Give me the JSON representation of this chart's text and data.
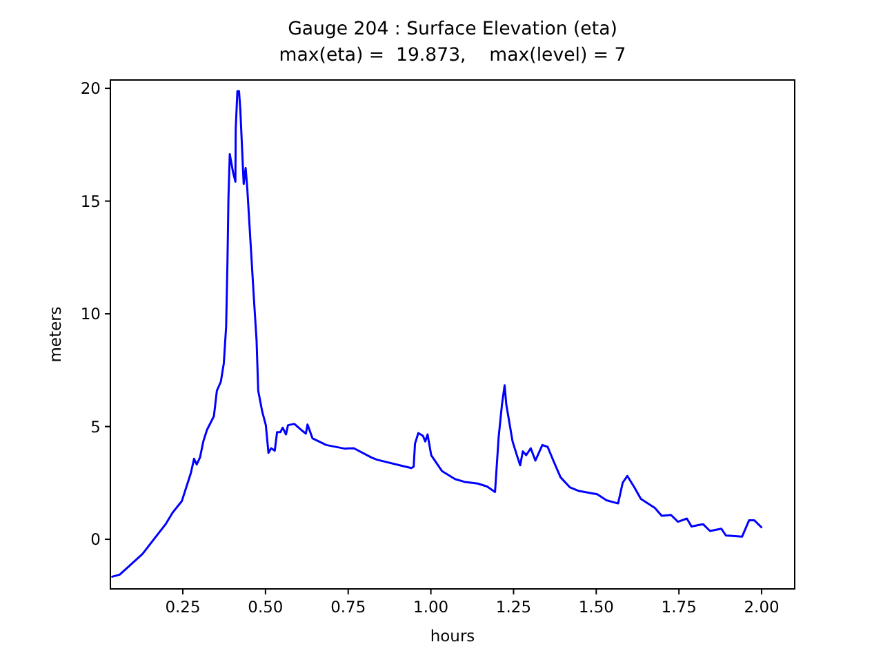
{
  "chart_data": {
    "type": "line",
    "title": "Gauge 204 : Surface Elevation (eta)",
    "subtitle": "max(eta) =  19.873,    max(level) = 7",
    "xlabel": "hours",
    "ylabel": "meters",
    "xlim": [
      0.031,
      2.1
    ],
    "ylim": [
      -2.2,
      20.37
    ],
    "xticks": [
      {
        "value": 0.25,
        "label": "0.25"
      },
      {
        "value": 0.5,
        "label": "0.50"
      },
      {
        "value": 0.75,
        "label": "0.75"
      },
      {
        "value": 1,
        "label": "1.00"
      },
      {
        "value": 1.25,
        "label": "1.25"
      },
      {
        "value": 1.5,
        "label": "1.50"
      },
      {
        "value": 1.75,
        "label": "1.75"
      },
      {
        "value": 2,
        "label": "2.00"
      }
    ],
    "yticks": [
      0,
      5,
      10,
      15,
      20
    ],
    "grid": false,
    "marker": "none",
    "line_style": "solid",
    "series": [
      {
        "color": "#0000ff",
        "x": [
          0.034,
          0.059,
          0.128,
          0.198,
          0.219,
          0.247,
          0.274,
          0.284,
          0.292,
          0.302,
          0.312,
          0.323,
          0.344,
          0.353,
          0.365,
          0.374,
          0.381,
          0.385,
          0.388,
          0.392,
          0.402,
          0.409,
          0.41,
          0.415,
          0.42,
          0.424,
          0.434,
          0.44,
          0.445,
          0.455,
          0.465,
          0.473,
          0.478,
          0.49,
          0.501,
          0.509,
          0.517,
          0.528,
          0.535,
          0.545,
          0.552,
          0.562,
          0.568,
          0.587,
          0.608,
          0.622,
          0.627,
          0.642,
          0.684,
          0.74,
          0.767,
          0.82,
          0.837,
          0.906,
          0.941,
          0.948,
          0.952,
          0.962,
          0.976,
          0.983,
          0.99,
          1.001,
          1.018,
          1.034,
          1.073,
          1.101,
          1.142,
          1.17,
          1.194,
          1.205,
          1.215,
          1.223,
          1.228,
          1.247,
          1.26,
          1.27,
          1.278,
          1.288,
          1.302,
          1.316,
          1.337,
          1.353,
          1.372,
          1.392,
          1.42,
          1.448,
          1.503,
          1.531,
          1.566,
          1.58,
          1.594,
          1.615,
          1.635,
          1.677,
          1.698,
          1.726,
          1.747,
          1.774,
          1.788,
          1.823,
          1.844,
          1.878,
          1.892,
          1.941,
          1.962,
          1.978,
          2.001
        ],
        "values": [
          -1.67,
          -1.57,
          -0.65,
          0.67,
          1.18,
          1.69,
          2.92,
          3.57,
          3.32,
          3.63,
          4.34,
          4.85,
          5.46,
          6.59,
          6.99,
          7.81,
          9.44,
          12.29,
          15.15,
          17.08,
          16.27,
          15.86,
          18.21,
          19.87,
          19.87,
          19.02,
          15.76,
          16.47,
          15.55,
          13.11,
          10.66,
          8.83,
          6.59,
          5.67,
          5.06,
          3.83,
          4.04,
          3.93,
          4.75,
          4.75,
          4.95,
          4.65,
          5.06,
          5.12,
          4.85,
          4.69,
          5.09,
          4.48,
          4.18,
          4.02,
          4.04,
          3.63,
          3.53,
          3.28,
          3.16,
          3.22,
          4.24,
          4.71,
          4.59,
          4.34,
          4.65,
          3.73,
          3.36,
          3.02,
          2.67,
          2.55,
          2.47,
          2.34,
          2.1,
          4.55,
          5.98,
          6.83,
          5.98,
          4.34,
          3.73,
          3.28,
          3.9,
          3.73,
          4.04,
          3.49,
          4.18,
          4.1,
          3.43,
          2.75,
          2.31,
          2.14,
          2.0,
          1.73,
          1.59,
          2.51,
          2.81,
          2.31,
          1.79,
          1.39,
          1.04,
          1.08,
          0.78,
          0.92,
          0.57,
          0.67,
          0.37,
          0.47,
          0.17,
          0.12,
          0.84,
          0.84,
          0.51
        ]
      }
    ]
  }
}
